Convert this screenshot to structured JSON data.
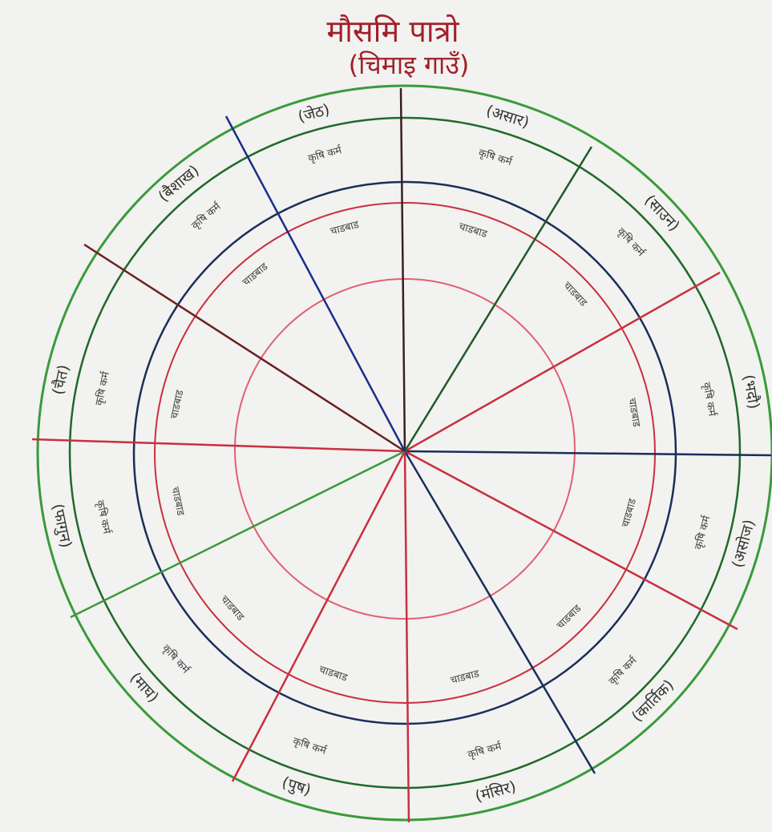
{
  "header": {
    "title": "मौसमि पात्रो",
    "subtitle": "(चिमाइ गाउँ)"
  },
  "sectors": [
    {
      "month": "(जेठ)",
      "items": [
        "कृषि कर्म",
        "चाडबाड"
      ]
    },
    {
      "month": "(असार)",
      "items": [
        "कृषि कर्म",
        "चाडबाड"
      ]
    },
    {
      "month": "(साउन)",
      "items": [
        "कृषि कर्म",
        "चाडबाड"
      ]
    },
    {
      "month": "(भदौ)",
      "items": [
        "कृषि कर्म",
        "चाडबाड"
      ]
    },
    {
      "month": "(असोज)",
      "items": [
        "कृषि कर्म",
        "चाडबाड"
      ]
    },
    {
      "month": "(कार्तिक)",
      "items": [
        "कृषि कर्म",
        "चाडबाड"
      ]
    },
    {
      "month": "(मंसिर)",
      "items": [
        "कृषि कर्म",
        "चाडबाड"
      ]
    },
    {
      "month": "(पुष)",
      "items": [
        "कृषि कर्म",
        "चाडबाड"
      ]
    },
    {
      "month": "(माघ)",
      "items": [
        "कृषि कर्म",
        "चाडबाड"
      ]
    },
    {
      "month": "(फागुन)",
      "items": [
        "कृषि कर्म",
        "चाडबाड"
      ]
    },
    {
      "month": "(चैत)",
      "items": [
        "कृषि कर्म",
        "चाडबाड"
      ]
    },
    {
      "month": "(बैशाख)",
      "items": [
        "कृषि कर्म",
        "चाडबाड"
      ]
    }
  ]
}
